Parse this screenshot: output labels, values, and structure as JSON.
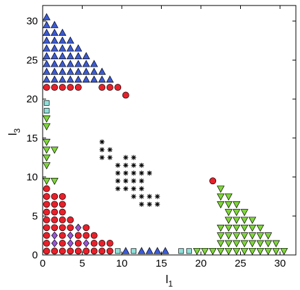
{
  "chart_data": {
    "type": "scatter",
    "xlabel": "l",
    "xlabel_sub": "1",
    "ylabel": "l",
    "ylabel_sub": "3",
    "xlim": [
      0,
      32
    ],
    "ylim": [
      0,
      32
    ],
    "x_ticks": [
      0,
      5,
      10,
      15,
      20,
      25,
      30
    ],
    "y_ticks": [
      0,
      5,
      10,
      15,
      20,
      25,
      30
    ],
    "grid": false,
    "legend": "none",
    "colors": {
      "up_triangle": "#3b5bd6",
      "circle": "#e8202a",
      "square": "#8fe0da",
      "down_triangle": "#7ed63a",
      "diamond": "#9b55d8",
      "star": "#000000"
    },
    "series": [
      {
        "marker": "up-triangle",
        "points": [
          [
            0.5,
            22.5
          ],
          [
            1.5,
            22.5
          ],
          [
            2.5,
            22.5
          ],
          [
            3.5,
            22.5
          ],
          [
            4.5,
            22.5
          ],
          [
            5.5,
            22.5
          ],
          [
            6.5,
            22.5
          ],
          [
            7.5,
            22.5
          ],
          [
            8.5,
            22.5
          ],
          [
            0.5,
            23.5
          ],
          [
            1.5,
            23.5
          ],
          [
            2.5,
            23.5
          ],
          [
            3.5,
            23.5
          ],
          [
            4.5,
            23.5
          ],
          [
            5.5,
            23.5
          ],
          [
            6.5,
            23.5
          ],
          [
            7.5,
            23.5
          ],
          [
            0.5,
            24.5
          ],
          [
            1.5,
            24.5
          ],
          [
            2.5,
            24.5
          ],
          [
            3.5,
            24.5
          ],
          [
            4.5,
            24.5
          ],
          [
            5.5,
            24.5
          ],
          [
            6.5,
            24.5
          ],
          [
            0.5,
            25.5
          ],
          [
            1.5,
            25.5
          ],
          [
            2.5,
            25.5
          ],
          [
            3.5,
            25.5
          ],
          [
            4.5,
            25.5
          ],
          [
            5.5,
            25.5
          ],
          [
            0.5,
            26.5
          ],
          [
            1.5,
            26.5
          ],
          [
            2.5,
            26.5
          ],
          [
            3.5,
            26.5
          ],
          [
            4.5,
            26.5
          ],
          [
            0.5,
            27.5
          ],
          [
            1.5,
            27.5
          ],
          [
            2.5,
            27.5
          ],
          [
            3.5,
            27.5
          ],
          [
            0.5,
            28.5
          ],
          [
            1.5,
            28.5
          ],
          [
            2.5,
            28.5
          ],
          [
            0.5,
            29.5
          ],
          [
            1.5,
            29.5
          ],
          [
            0.5,
            30.5
          ],
          [
            10.5,
            0.5
          ],
          [
            12.5,
            0.5
          ],
          [
            13.5,
            0.5
          ],
          [
            14.5,
            0.5
          ],
          [
            15.5,
            0.5
          ]
        ]
      },
      {
        "marker": "circle",
        "points": [
          [
            0.5,
            21.5
          ],
          [
            1.5,
            21.5
          ],
          [
            2.5,
            21.5
          ],
          [
            3.5,
            21.5
          ],
          [
            4.5,
            21.5
          ],
          [
            7.5,
            21.5
          ],
          [
            8.5,
            21.5
          ],
          [
            9.5,
            21.5
          ],
          [
            10.5,
            20.5
          ],
          [
            0.5,
            0.5
          ],
          [
            1.5,
            0.5
          ],
          [
            2.5,
            0.5
          ],
          [
            3.5,
            0.5
          ],
          [
            4.5,
            0.5
          ],
          [
            5.5,
            0.5
          ],
          [
            6.5,
            0.5
          ],
          [
            7.5,
            0.5
          ],
          [
            8.5,
            0.5
          ],
          [
            0.5,
            1.5
          ],
          [
            2.5,
            1.5
          ],
          [
            4.5,
            1.5
          ],
          [
            6.5,
            1.5
          ],
          [
            7.5,
            1.5
          ],
          [
            8.5,
            1.5
          ],
          [
            0.5,
            2.5
          ],
          [
            2.5,
            2.5
          ],
          [
            4.5,
            2.5
          ],
          [
            5.5,
            2.5
          ],
          [
            6.5,
            2.5
          ],
          [
            0.5,
            3.5
          ],
          [
            1.5,
            3.5
          ],
          [
            2.5,
            3.5
          ],
          [
            3.5,
            3.5
          ],
          [
            5.5,
            3.5
          ],
          [
            0.5,
            4.5
          ],
          [
            1.5,
            4.5
          ],
          [
            2.5,
            4.5
          ],
          [
            3.5,
            4.5
          ],
          [
            0.5,
            5.5
          ],
          [
            1.5,
            5.5
          ],
          [
            2.5,
            5.5
          ],
          [
            0.5,
            6.5
          ],
          [
            1.5,
            6.5
          ],
          [
            2.5,
            6.5
          ],
          [
            0.5,
            7.5
          ],
          [
            1.5,
            7.5
          ],
          [
            2.5,
            7.5
          ],
          [
            0.5,
            8.5
          ],
          [
            21.5,
            9.5
          ]
        ]
      },
      {
        "marker": "square",
        "points": [
          [
            0.5,
            18.5
          ],
          [
            0.5,
            19.5
          ],
          [
            9.5,
            0.5
          ],
          [
            11.5,
            0.5
          ],
          [
            17.5,
            0.5
          ],
          [
            18.5,
            0.5
          ]
        ]
      },
      {
        "marker": "down-triangle",
        "points": [
          [
            0.5,
            11.5
          ],
          [
            0.5,
            12.5
          ],
          [
            0.5,
            13.5
          ],
          [
            1.5,
            13.5
          ],
          [
            0.5,
            14.5
          ],
          [
            0.5,
            16.5
          ],
          [
            0.5,
            17.5
          ],
          [
            0.5,
            9.5
          ],
          [
            1.5,
            9.5
          ],
          [
            19.5,
            0.5
          ],
          [
            20.5,
            0.5
          ],
          [
            21.5,
            0.5
          ],
          [
            22.5,
            0.5
          ],
          [
            23.5,
            0.5
          ],
          [
            24.5,
            0.5
          ],
          [
            25.5,
            0.5
          ],
          [
            26.5,
            0.5
          ],
          [
            27.5,
            0.5
          ],
          [
            28.5,
            0.5
          ],
          [
            29.5,
            0.5
          ],
          [
            30.5,
            0.5
          ],
          [
            22.5,
            1.5
          ],
          [
            23.5,
            1.5
          ],
          [
            24.5,
            1.5
          ],
          [
            25.5,
            1.5
          ],
          [
            26.5,
            1.5
          ],
          [
            27.5,
            1.5
          ],
          [
            28.5,
            1.5
          ],
          [
            29.5,
            1.5
          ],
          [
            22.5,
            2.5
          ],
          [
            23.5,
            2.5
          ],
          [
            24.5,
            2.5
          ],
          [
            25.5,
            2.5
          ],
          [
            26.5,
            2.5
          ],
          [
            27.5,
            2.5
          ],
          [
            28.5,
            2.5
          ],
          [
            22.5,
            3.5
          ],
          [
            23.5,
            3.5
          ],
          [
            24.5,
            3.5
          ],
          [
            25.5,
            3.5
          ],
          [
            26.5,
            3.5
          ],
          [
            27.5,
            3.5
          ],
          [
            23.5,
            4.5
          ],
          [
            24.5,
            4.5
          ],
          [
            25.5,
            4.5
          ],
          [
            26.5,
            4.5
          ],
          [
            23.5,
            5.5
          ],
          [
            24.5,
            5.5
          ],
          [
            25.5,
            5.5
          ],
          [
            22.5,
            6.5
          ],
          [
            23.5,
            6.5
          ],
          [
            24.5,
            6.5
          ],
          [
            22.5,
            7.5
          ],
          [
            23.5,
            7.5
          ],
          [
            22.5,
            8.5
          ]
        ]
      },
      {
        "marker": "diamond",
        "points": [
          [
            1.5,
            1.5
          ],
          [
            3.5,
            1.5
          ],
          [
            5.5,
            1.5
          ],
          [
            1.5,
            2.5
          ],
          [
            3.5,
            2.5
          ],
          [
            4.5,
            3.5
          ]
        ]
      },
      {
        "marker": "star",
        "points": [
          [
            7.5,
            14.5
          ],
          [
            7.5,
            13.5
          ],
          [
            8.5,
            13.5
          ],
          [
            7.5,
            12.5
          ],
          [
            8.5,
            12.5
          ],
          [
            10.5,
            12.5
          ],
          [
            11.5,
            12.5
          ],
          [
            9.5,
            11.5
          ],
          [
            10.5,
            11.5
          ],
          [
            11.5,
            11.5
          ],
          [
            12.5,
            11.5
          ],
          [
            9.5,
            10.5
          ],
          [
            10.5,
            10.5
          ],
          [
            11.5,
            10.5
          ],
          [
            12.5,
            10.5
          ],
          [
            13.5,
            10.5
          ],
          [
            9.5,
            9.5
          ],
          [
            10.5,
            9.5
          ],
          [
            11.5,
            9.5
          ],
          [
            12.5,
            9.5
          ],
          [
            9.5,
            8.5
          ],
          [
            10.5,
            8.5
          ],
          [
            11.5,
            8.5
          ],
          [
            12.5,
            8.5
          ],
          [
            11.5,
            7.5
          ],
          [
            12.5,
            7.5
          ],
          [
            13.5,
            7.5
          ],
          [
            14.5,
            7.5
          ],
          [
            12.5,
            6.5
          ],
          [
            13.5,
            6.5
          ],
          [
            14.5,
            6.5
          ]
        ]
      }
    ]
  }
}
